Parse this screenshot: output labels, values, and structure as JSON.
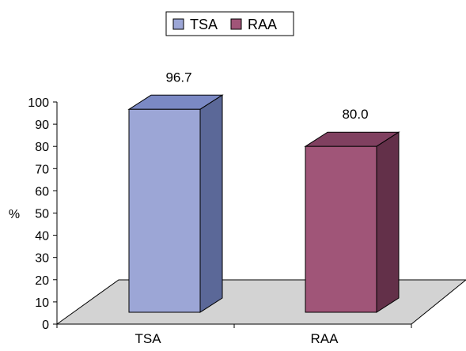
{
  "chart_data": {
    "type": "bar",
    "categories": [
      "TSA",
      "RAA"
    ],
    "values": [
      96.7,
      80.0
    ],
    "data_labels": [
      "96.7",
      "80.0"
    ],
    "title": "",
    "xlabel": "",
    "ylabel": "%",
    "ylim": [
      0,
      100
    ],
    "yticks": [
      "0",
      "10",
      "20",
      "30",
      "40",
      "50",
      "60",
      "70",
      "80",
      "90",
      "100"
    ],
    "legend": {
      "placement": "top-center",
      "entries": [
        {
          "label": "TSA",
          "color": "#9ca6d6"
        },
        {
          "label": "RAA",
          "color": "#a05578"
        }
      ]
    },
    "grid": false,
    "style": "3d-column",
    "colors": {
      "front": [
        "#9ca6d6",
        "#a05578"
      ],
      "side": [
        "#5b6898",
        "#633049"
      ],
      "top": [
        "#7b89c4",
        "#804060"
      ],
      "floor": "#d3d3d3"
    }
  }
}
